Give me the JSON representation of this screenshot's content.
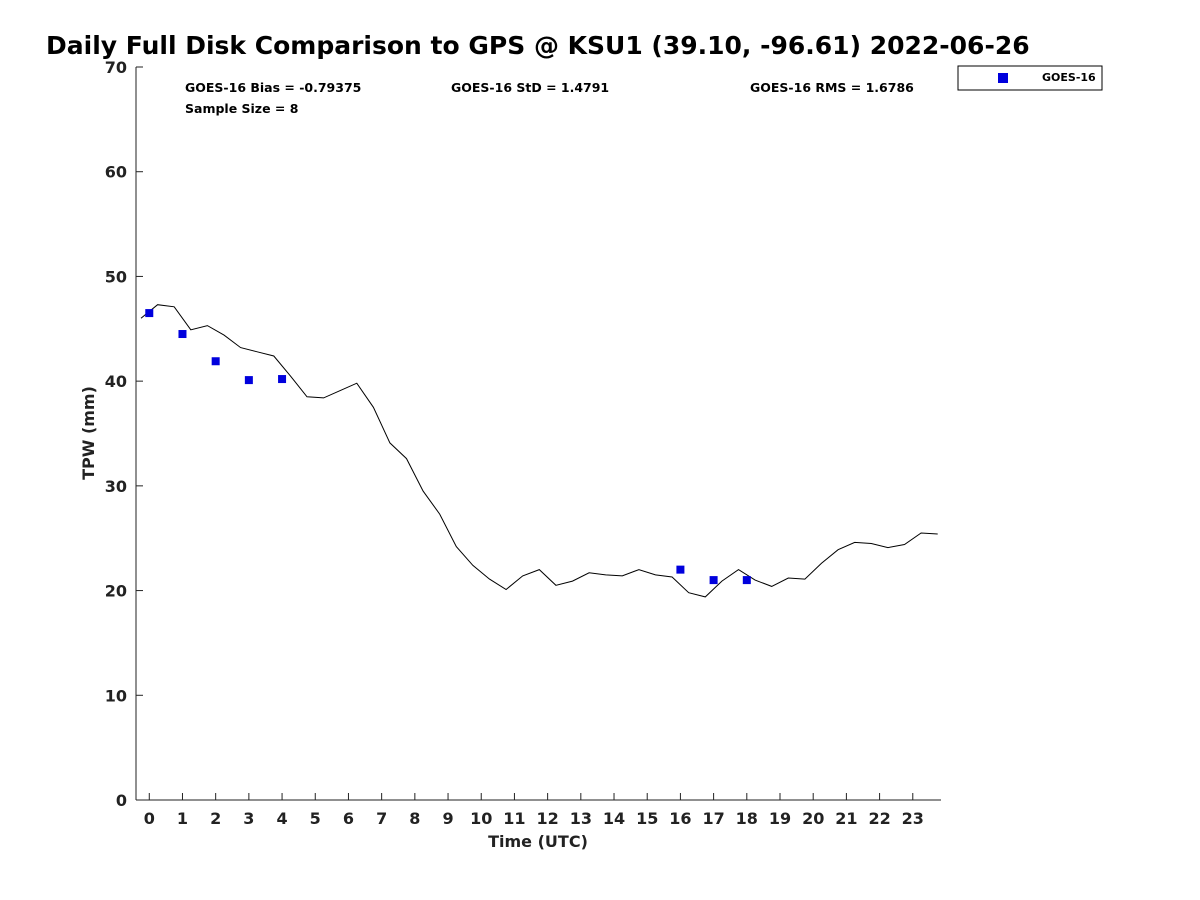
{
  "chart_data": {
    "type": "line",
    "title": "Daily Full Disk Comparison to GPS @ KSU1 (39.10, -96.61) 2022-06-26",
    "xlabel": "Time (UTC)",
    "ylabel": "TPW (mm)",
    "xlim": [
      -0.4,
      23.85
    ],
    "ylim": [
      0,
      70
    ],
    "x_ticks": [
      0,
      1,
      2,
      3,
      4,
      5,
      6,
      7,
      8,
      9,
      10,
      11,
      12,
      13,
      14,
      15,
      16,
      17,
      18,
      19,
      20,
      21,
      22,
      23
    ],
    "x_tick_labels": [
      "0",
      "1",
      "2",
      "3",
      "4",
      "5",
      "6",
      "7",
      "8",
      "9",
      "10",
      "11",
      "12",
      "13",
      "14",
      "15",
      "16",
      "17",
      "18",
      "19",
      "20",
      "21",
      "22",
      "23"
    ],
    "y_ticks": [
      0,
      10,
      20,
      30,
      40,
      50,
      60,
      70
    ],
    "y_tick_labels": [
      "0",
      "10",
      "20",
      "30",
      "40",
      "50",
      "60",
      "70"
    ],
    "stats": {
      "bias": "GOES-16 Bias = -0.79375",
      "std": "GOES-16 StD = 1.4791",
      "rms": "GOES-16 RMS = 1.6786",
      "sample_size": "Sample Size = 8"
    },
    "legend": {
      "position": "top-right",
      "entries": [
        "GOES-16"
      ]
    },
    "series": [
      {
        "kind": "line",
        "color": "#000000",
        "x": [
          -0.25,
          0.25,
          0.75,
          1.25,
          1.75,
          2.25,
          2.75,
          3.25,
          3.75,
          4.25,
          4.75,
          5.25,
          5.75,
          6.25,
          6.75,
          7.25,
          7.75,
          8.25,
          8.75,
          9.25,
          9.75,
          10.25,
          10.75,
          11.25,
          11.75,
          12.25,
          12.75,
          13.25,
          13.75,
          14.25,
          14.75,
          15.25,
          15.75,
          16.25,
          16.75,
          17.25,
          17.75,
          18.25,
          18.75,
          19.25,
          19.75,
          20.25,
          20.75,
          21.25,
          21.75,
          22.25,
          22.75,
          23.25,
          23.75
        ],
        "y": [
          46.0,
          47.3,
          47.1,
          44.9,
          45.3,
          44.4,
          43.2,
          42.8,
          42.4,
          40.5,
          38.5,
          38.4,
          39.1,
          39.8,
          37.5,
          34.1,
          32.6,
          29.5,
          27.3,
          24.2,
          22.4,
          21.1,
          20.1,
          21.4,
          22.0,
          20.5,
          20.9,
          21.7,
          21.5,
          21.4,
          22.0,
          21.5,
          21.3,
          19.8,
          19.4,
          20.9,
          22.0,
          21.0,
          20.4,
          21.2,
          21.1,
          22.6,
          23.9,
          24.6,
          24.5,
          24.1,
          24.4,
          25.5,
          25.4
        ]
      },
      {
        "name": "GOES-16",
        "kind": "scatter",
        "color": "#0000dd",
        "x": [
          0,
          1,
          2,
          3,
          4,
          16,
          17,
          18
        ],
        "y": [
          46.5,
          44.5,
          41.9,
          40.1,
          40.2,
          22.0,
          21.0,
          21.0
        ]
      }
    ]
  }
}
